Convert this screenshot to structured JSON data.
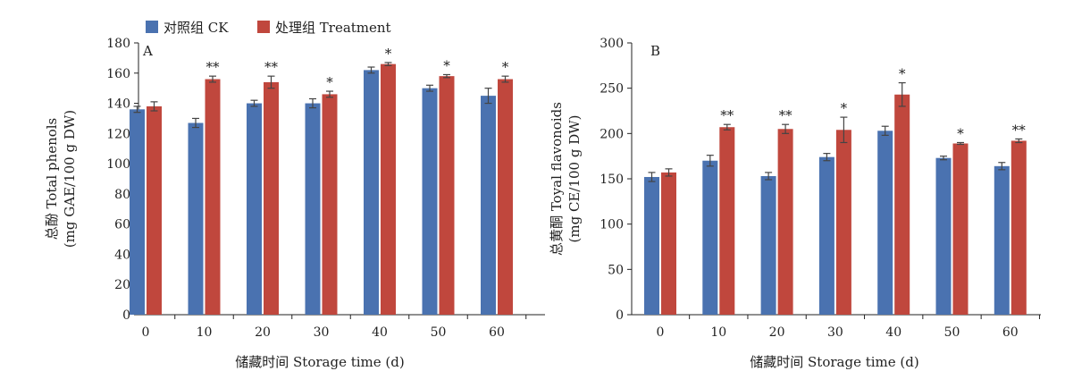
{
  "legend": {
    "ck": {
      "label": "对照组 CK",
      "color": "#4a72b0"
    },
    "treatment": {
      "label": "处理组 Treatment",
      "color": "#c0473d"
    }
  },
  "chart_data": [
    {
      "type": "bar",
      "panel_label": "A",
      "categories": [
        "0",
        "10",
        "20",
        "30",
        "40",
        "50",
        "60"
      ],
      "xlabel": "储藏时间 Storage time (d)",
      "ylabel_line1": "总酚 Total phenols",
      "ylabel_line2": "(mg GAE/100 g DW)",
      "ylim": [
        0,
        180
      ],
      "yticks": [
        0,
        20,
        40,
        60,
        80,
        100,
        120,
        140,
        160,
        180
      ],
      "series": [
        {
          "name": "对照组 CK",
          "color": "#4a72b0",
          "values": [
            136,
            127,
            140,
            140,
            162,
            150,
            145
          ],
          "errors": [
            2,
            3,
            2,
            3,
            2,
            2,
            5
          ]
        },
        {
          "name": "处理组 Treatment",
          "color": "#c0473d",
          "values": [
            138,
            156,
            154,
            146,
            166,
            158,
            156
          ],
          "errors": [
            3,
            2,
            4,
            2,
            1,
            1,
            2
          ]
        }
      ],
      "significance": [
        "",
        "**",
        "**",
        "*",
        "*",
        "*",
        "*"
      ]
    },
    {
      "type": "bar",
      "panel_label": "B",
      "categories": [
        "0",
        "10",
        "20",
        "30",
        "40",
        "50",
        "60"
      ],
      "xlabel": "储藏时间 Storage time (d)",
      "ylabel_line1": "总黄酮 Toyal flavonoids",
      "ylabel_line2": "(mg CE/100 g DW)",
      "ylim": [
        0,
        300
      ],
      "yticks": [
        0,
        50,
        100,
        150,
        200,
        250,
        300
      ],
      "series": [
        {
          "name": "对照组 CK",
          "color": "#4a72b0",
          "values": [
            152,
            170,
            153,
            174,
            203,
            173,
            164
          ],
          "errors": [
            5,
            6,
            4,
            4,
            5,
            2,
            4
          ]
        },
        {
          "name": "处理组 Treatment",
          "color": "#c0473d",
          "values": [
            157,
            207,
            205,
            204,
            243,
            189,
            192
          ],
          "errors": [
            4,
            3,
            5,
            14,
            13,
            1,
            2
          ]
        }
      ],
      "significance": [
        "",
        "**",
        "**",
        "*",
        "*",
        "*",
        "**"
      ]
    }
  ]
}
